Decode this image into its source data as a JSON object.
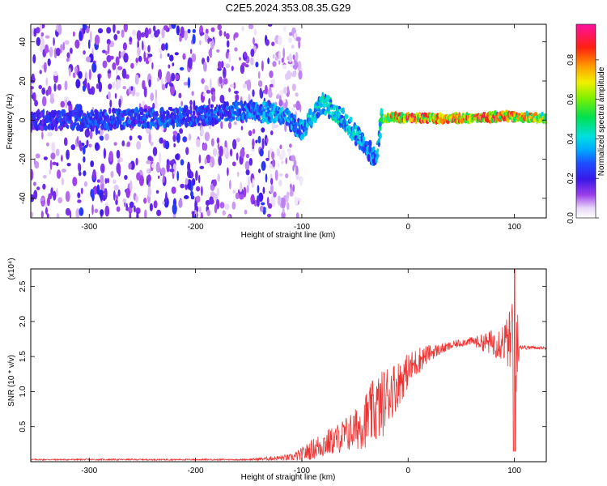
{
  "title": "C2E5.2024.353.08.35.G29",
  "chart_data": [
    {
      "type": "heatmap",
      "xlabel": "Height of straight line (km)",
      "ylabel": "Frequency (Hz)",
      "xlim": [
        -355,
        130
      ],
      "ylim": [
        -50,
        49
      ],
      "xticks": [
        -300,
        -200,
        -100,
        0,
        100
      ],
      "yticks": [
        -40,
        -20,
        0,
        20,
        40
      ],
      "colorbar": {
        "label": "Normalized spectral amplitude",
        "range": [
          0,
          0.98
        ],
        "ticks": [
          "0.0",
          "0.2",
          "0.4",
          "0.6",
          "0.8"
        ],
        "colormap": "rainbow (white-violet-blue-cyan-green-yellow-orange-red-magenta)"
      },
      "features": {
        "noise_region_x": [
          -355,
          -120
        ],
        "ridge": [
          {
            "x": -350,
            "f": 0,
            "amp": 0.25
          },
          {
            "x": -300,
            "f": 0,
            "amp": 0.3
          },
          {
            "x": -250,
            "f": 1,
            "amp": 0.3
          },
          {
            "x": -200,
            "f": 2,
            "amp": 0.3
          },
          {
            "x": -150,
            "f": 5,
            "amp": 0.35
          },
          {
            "x": -120,
            "f": 3,
            "amp": 0.4
          },
          {
            "x": -100,
            "f": -5,
            "amp": 0.4
          },
          {
            "x": -80,
            "f": 9,
            "amp": 0.45
          },
          {
            "x": -60,
            "f": 0,
            "amp": 0.45
          },
          {
            "x": -45,
            "f": -10,
            "amp": 0.4
          },
          {
            "x": -30,
            "f": -20,
            "amp": 0.35
          },
          {
            "x": -25,
            "f": 0,
            "amp": 0.6
          },
          {
            "x": -15,
            "f": 2,
            "amp": 0.85
          },
          {
            "x": 0,
            "f": 1,
            "amp": 0.9
          },
          {
            "x": 50,
            "f": 1,
            "amp": 0.85
          },
          {
            "x": 90,
            "f": 2,
            "amp": 0.9
          },
          {
            "x": 130,
            "f": 1,
            "amp": 0.7
          }
        ]
      }
    },
    {
      "type": "line",
      "xlabel": "Height of straight line (km)",
      "ylabel": "SNR (10 * v/v)",
      "yscale_note": "(x10⁴)",
      "y_unit_multiplier": 10000,
      "xlim": [
        -355,
        130
      ],
      "ylim": [
        0,
        2.75
      ],
      "xticks": [
        -300,
        -200,
        -100,
        0,
        100
      ],
      "yticks": [
        0.5,
        1.0,
        1.5,
        2.0,
        2.5
      ],
      "ytick_labels": [
        "0.5",
        "1.0",
        "1.5",
        "2.0",
        "2.5"
      ],
      "color": "#ee3333",
      "series": [
        {
          "x": [
            -355,
            -300,
            -200,
            -150,
            -110,
            -100,
            -90,
            -80,
            -70,
            -60,
            -50,
            -40,
            -30,
            -25,
            -20,
            -10,
            0,
            10,
            20,
            30,
            40,
            50,
            60,
            70,
            80,
            90,
            95,
            100,
            105,
            110,
            120,
            130
          ],
          "values": [
            0.03,
            0.03,
            0.03,
            0.03,
            0.06,
            0.1,
            0.18,
            0.25,
            0.3,
            0.38,
            0.45,
            0.6,
            0.75,
            0.8,
            0.95,
            1.1,
            1.3,
            1.45,
            1.55,
            1.6,
            1.65,
            1.7,
            1.72,
            1.7,
            1.7,
            1.72,
            1.7,
            1.75,
            1.65,
            1.63,
            1.63,
            1.62
          ],
          "noise": [
            0.01,
            0.01,
            0.01,
            0.01,
            0.05,
            0.1,
            0.15,
            0.2,
            0.2,
            0.25,
            0.3,
            0.4,
            0.5,
            0.5,
            0.45,
            0.35,
            0.25,
            0.2,
            0.12,
            0.08,
            0.06,
            0.06,
            0.06,
            0.12,
            0.2,
            0.3,
            0.4,
            1.3,
            0.05,
            0.03,
            0.02,
            0.02
          ]
        }
      ]
    }
  ]
}
